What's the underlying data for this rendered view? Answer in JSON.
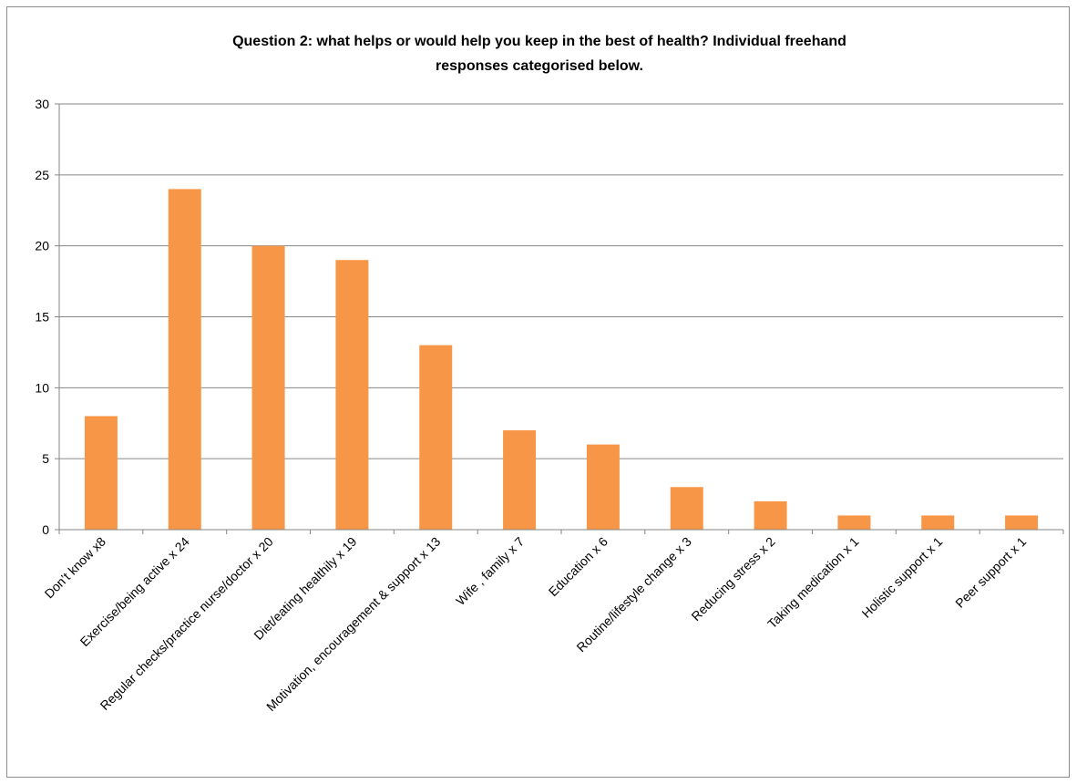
{
  "chart_data": {
    "type": "bar",
    "title_lines": [
      "Question 2: what helps or would help you keep in the best of health? Individual freehand",
      "responses categorised below."
    ],
    "categories": [
      "Don’t know x8",
      "Exercise/being active x 24",
      "Regular checks/practice nurse/doctor x 20",
      "Diet/eating healthily x 19",
      "Motivation, encouragement & support  x 13",
      "Wife , family x 7",
      "Education x 6",
      "Routine/lifestyle change  x 3",
      "Reducing stress x 2",
      "Taking medication x 1",
      "Holistic support x 1",
      "Peer support x 1"
    ],
    "values": [
      8,
      24,
      20,
      19,
      13,
      7,
      6,
      3,
      2,
      1,
      1,
      1
    ],
    "y_ticks": [
      "0",
      "5",
      "10",
      "15",
      "20",
      "25",
      "30"
    ],
    "ylim": [
      0,
      30
    ],
    "grid": true,
    "legend": "none",
    "bar_color": "#F79646",
    "grid_color": "#868686"
  }
}
